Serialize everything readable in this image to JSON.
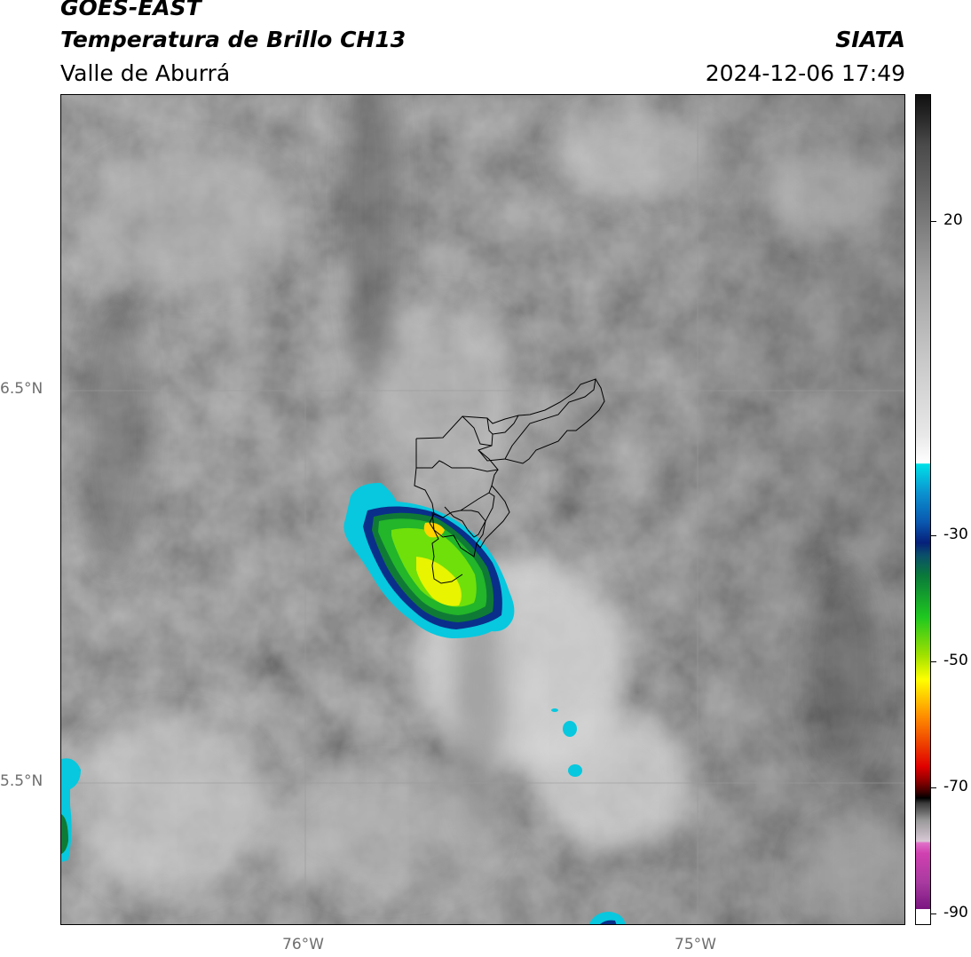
{
  "header": {
    "title": "GOES-EAST",
    "subtitle": "Temperatura de Brillo CH13",
    "region": "Valle de Aburrá",
    "organization": "SIATA",
    "timestamp": "2024-12-06 17:49"
  },
  "map": {
    "lat_labels": [
      "6.5°N",
      "5.5°N"
    ],
    "lon_labels": [
      "76°W",
      "75°W"
    ],
    "gridlines": true,
    "basemap": "grayscale satellite cloud-top brightness temperature"
  },
  "colorbar": {
    "labels": [
      "20",
      "-30",
      "-50",
      "-70",
      "-90"
    ],
    "range": [
      -90,
      30
    ],
    "colors": {
      "warm_gray": "#2b2b2b",
      "cold_cyan": "#00e0e8",
      "dark_blue": "#06207a",
      "green": "#1fc81f",
      "yellow": "#ffff00",
      "orange": "#ff8c00",
      "red": "#e00000",
      "black": "#000000",
      "magenta": "#d040b0",
      "purple": "#7a1580"
    }
  }
}
